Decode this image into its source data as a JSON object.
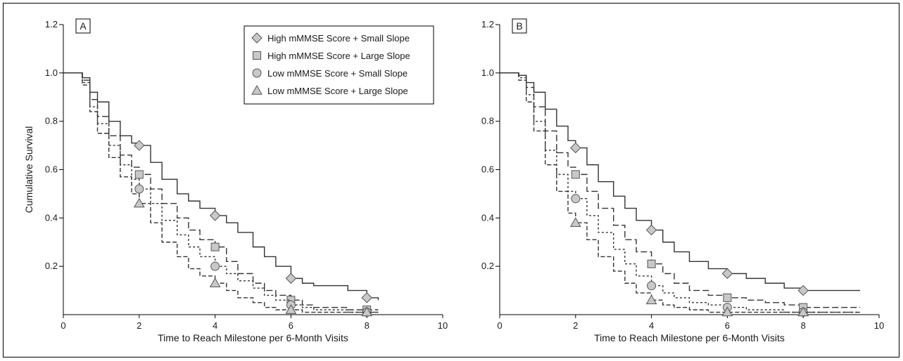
{
  "chart_data": [
    {
      "type": "line",
      "panel_label": "A",
      "ylabel": "Cumulative Survival",
      "xlabel": "Time to Reach Milestone per 6-Month Visits",
      "xlim": [
        0,
        10
      ],
      "ylim": [
        0,
        1.2
      ],
      "x_ticks": [
        0,
        2,
        4,
        6,
        8,
        10
      ],
      "y_ticks": [
        0.2,
        0.4,
        0.6,
        0.8,
        1.0,
        1.2
      ],
      "legend_position": "top-right",
      "series": [
        {
          "name": "High mMMSE Score + Small Slope",
          "marker": "diamond",
          "dash": "solid",
          "x": [
            0,
            0.3,
            0.5,
            0.7,
            0.9,
            1.2,
            1.5,
            1.8,
            2.0,
            2.3,
            2.6,
            3.0,
            3.3,
            3.6,
            4.0,
            4.3,
            4.6,
            5.0,
            5.3,
            5.6,
            6.0,
            6.3,
            6.6,
            7.0,
            7.5,
            8.0,
            8.3
          ],
          "y": [
            1.0,
            1.0,
            0.98,
            0.92,
            0.88,
            0.8,
            0.74,
            0.71,
            0.7,
            0.63,
            0.56,
            0.5,
            0.47,
            0.44,
            0.41,
            0.38,
            0.34,
            0.28,
            0.24,
            0.2,
            0.15,
            0.13,
            0.12,
            0.12,
            0.1,
            0.07,
            0.06
          ],
          "markers": [
            [
              2,
              0.7
            ],
            [
              4,
              0.41
            ],
            [
              6,
              0.15
            ],
            [
              8,
              0.07
            ]
          ]
        },
        {
          "name": "High mMMSE Score + Large Slope",
          "marker": "square",
          "dash": "long-dash",
          "x": [
            0,
            0.3,
            0.5,
            0.7,
            0.9,
            1.2,
            1.5,
            1.8,
            2.0,
            2.3,
            2.6,
            3.0,
            3.3,
            3.6,
            4.0,
            4.3,
            4.6,
            5.0,
            5.3,
            5.6,
            6.0,
            6.3,
            6.6,
            7.0,
            7.5,
            8.0,
            8.3
          ],
          "y": [
            1.0,
            1.0,
            0.97,
            0.89,
            0.82,
            0.74,
            0.66,
            0.61,
            0.58,
            0.52,
            0.46,
            0.4,
            0.35,
            0.31,
            0.28,
            0.22,
            0.17,
            0.13,
            0.1,
            0.08,
            0.06,
            0.04,
            0.03,
            0.03,
            0.02,
            0.02,
            0.02
          ],
          "markers": [
            [
              2,
              0.58
            ],
            [
              4,
              0.28
            ],
            [
              6,
              0.06
            ],
            [
              8,
              0.02
            ]
          ]
        },
        {
          "name": "Low mMMSE Score + Small Slope",
          "marker": "circle",
          "dash": "short-dash",
          "x": [
            0,
            0.3,
            0.5,
            0.7,
            0.9,
            1.2,
            1.5,
            1.8,
            2.0,
            2.3,
            2.6,
            3.0,
            3.3,
            3.6,
            4.0,
            4.3,
            4.6,
            5.0,
            5.3,
            5.6,
            6.0,
            6.3,
            6.6,
            7.0,
            7.5,
            8.0,
            8.3
          ],
          "y": [
            1.0,
            1.0,
            0.96,
            0.86,
            0.79,
            0.7,
            0.62,
            0.56,
            0.52,
            0.46,
            0.39,
            0.33,
            0.28,
            0.24,
            0.2,
            0.17,
            0.14,
            0.11,
            0.08,
            0.06,
            0.04,
            0.03,
            0.02,
            0.02,
            0.01,
            0.01,
            0.01
          ],
          "markers": [
            [
              2,
              0.52
            ],
            [
              4,
              0.2
            ],
            [
              6,
              0.04
            ],
            [
              8,
              0.01
            ]
          ]
        },
        {
          "name": "Low mMMSE Score + Large Slope",
          "marker": "triangle",
          "dash": "dash",
          "x": [
            0,
            0.3,
            0.5,
            0.7,
            0.9,
            1.2,
            1.5,
            1.8,
            2.0,
            2.3,
            2.6,
            3.0,
            3.3,
            3.6,
            4.0,
            4.3,
            4.6,
            5.0,
            5.3,
            5.6,
            6.0,
            6.3,
            6.6,
            7.0,
            7.5,
            8.0,
            8.3
          ],
          "y": [
            1.0,
            1.0,
            0.95,
            0.84,
            0.75,
            0.65,
            0.57,
            0.5,
            0.46,
            0.38,
            0.3,
            0.24,
            0.19,
            0.16,
            0.13,
            0.1,
            0.07,
            0.05,
            0.03,
            0.02,
            0.02,
            0.01,
            0.01,
            0.01,
            0.01,
            0.01,
            0.01
          ],
          "markers": [
            [
              2,
              0.46
            ],
            [
              4,
              0.13
            ],
            [
              6,
              0.02
            ],
            [
              8,
              0.01
            ]
          ]
        }
      ]
    },
    {
      "type": "line",
      "panel_label": "B",
      "ylabel": "",
      "xlabel": "Time to Reach Milestone per 6-Month Visits",
      "xlim": [
        0,
        10
      ],
      "ylim": [
        0,
        1.2
      ],
      "x_ticks": [
        0,
        2,
        4,
        6,
        8,
        10
      ],
      "y_ticks": [
        0.2,
        0.4,
        0.6,
        0.8,
        1.0,
        1.2
      ],
      "series": [
        {
          "name": "High mMMSE Score + Small Slope",
          "marker": "diamond",
          "dash": "solid",
          "x": [
            0,
            0.3,
            0.5,
            0.7,
            0.9,
            1.2,
            1.5,
            1.8,
            2.0,
            2.3,
            2.6,
            3.0,
            3.3,
            3.6,
            4.0,
            4.3,
            4.6,
            5.0,
            5.5,
            6.0,
            6.5,
            7.0,
            7.5,
            8.0,
            8.5,
            9.0,
            9.5
          ],
          "y": [
            1.0,
            1.0,
            0.99,
            0.96,
            0.92,
            0.85,
            0.78,
            0.72,
            0.69,
            0.62,
            0.55,
            0.49,
            0.44,
            0.39,
            0.35,
            0.3,
            0.26,
            0.22,
            0.19,
            0.17,
            0.15,
            0.13,
            0.11,
            0.1,
            0.1,
            0.1,
            0.1
          ],
          "markers": [
            [
              2,
              0.69
            ],
            [
              4,
              0.35
            ],
            [
              6,
              0.17
            ],
            [
              8,
              0.1
            ]
          ]
        },
        {
          "name": "High mMMSE Score + Large Slope",
          "marker": "square",
          "dash": "long-dash",
          "x": [
            0,
            0.3,
            0.5,
            0.7,
            0.9,
            1.2,
            1.5,
            1.8,
            2.0,
            2.3,
            2.6,
            3.0,
            3.3,
            3.6,
            4.0,
            4.3,
            4.6,
            5.0,
            5.5,
            6.0,
            6.5,
            7.0,
            7.5,
            8.0,
            8.5,
            9.0,
            9.5
          ],
          "y": [
            1.0,
            1.0,
            0.99,
            0.94,
            0.86,
            0.76,
            0.67,
            0.61,
            0.58,
            0.51,
            0.44,
            0.37,
            0.31,
            0.26,
            0.21,
            0.17,
            0.13,
            0.1,
            0.08,
            0.07,
            0.06,
            0.05,
            0.04,
            0.03,
            0.03,
            0.03,
            0.03
          ],
          "markers": [
            [
              2,
              0.58
            ],
            [
              4,
              0.21
            ],
            [
              6,
              0.07
            ],
            [
              8,
              0.03
            ]
          ]
        },
        {
          "name": "Low mMMSE Score + Small Slope",
          "marker": "circle",
          "dash": "short-dash",
          "x": [
            0,
            0.3,
            0.5,
            0.7,
            0.9,
            1.2,
            1.5,
            1.8,
            2.0,
            2.3,
            2.6,
            3.0,
            3.3,
            3.6,
            4.0,
            4.3,
            4.6,
            5.0,
            5.5,
            6.0,
            6.5,
            7.0,
            7.5,
            8.0,
            8.5,
            9.0,
            9.5
          ],
          "y": [
            1.0,
            1.0,
            0.98,
            0.91,
            0.8,
            0.68,
            0.58,
            0.51,
            0.48,
            0.41,
            0.34,
            0.27,
            0.21,
            0.16,
            0.12,
            0.09,
            0.07,
            0.05,
            0.04,
            0.03,
            0.02,
            0.02,
            0.01,
            0.01,
            0.01,
            0.01,
            0.01
          ],
          "markers": [
            [
              2,
              0.48
            ],
            [
              4,
              0.12
            ],
            [
              6,
              0.03
            ],
            [
              8,
              0.01
            ]
          ]
        },
        {
          "name": "Low mMMSE Score + Large Slope",
          "marker": "triangle",
          "dash": "dash",
          "x": [
            0,
            0.3,
            0.5,
            0.7,
            0.9,
            1.2,
            1.5,
            1.8,
            2.0,
            2.3,
            2.6,
            3.0,
            3.3,
            3.6,
            4.0,
            4.3,
            4.6,
            5.0,
            5.5,
            6.0,
            6.5,
            7.0,
            7.5,
            8.0,
            8.5,
            9.0,
            9.5
          ],
          "y": [
            1.0,
            1.0,
            0.97,
            0.88,
            0.76,
            0.62,
            0.51,
            0.42,
            0.38,
            0.31,
            0.24,
            0.18,
            0.13,
            0.09,
            0.06,
            0.04,
            0.03,
            0.02,
            0.01,
            0.01,
            0.01,
            0.01,
            0.01,
            0.01,
            0.01,
            0.01,
            0.01
          ],
          "markers": [
            [
              2,
              0.38
            ],
            [
              4,
              0.06
            ],
            [
              6,
              0.01
            ],
            [
              8,
              0.01
            ]
          ]
        }
      ]
    }
  ]
}
